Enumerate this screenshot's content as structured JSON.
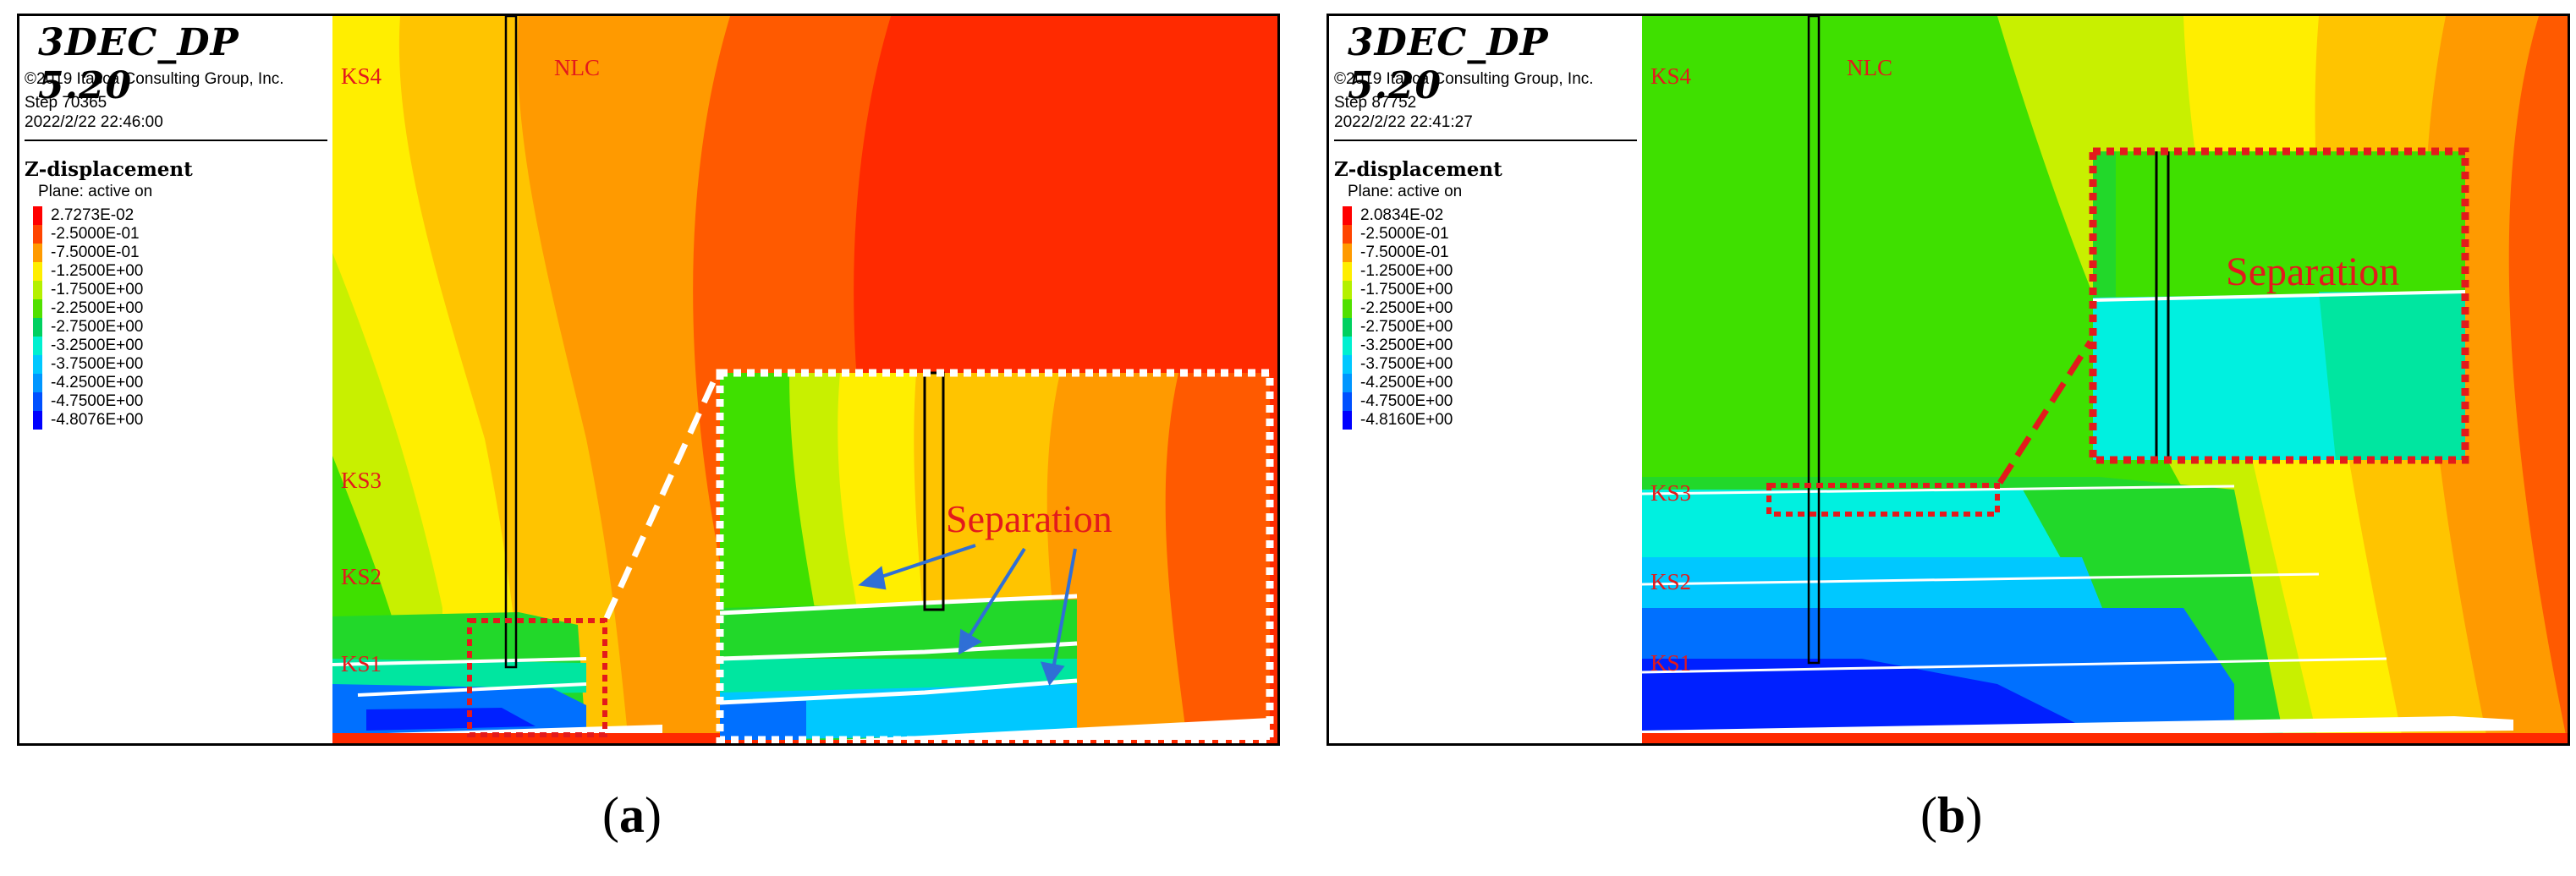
{
  "panels": [
    {
      "id": "a",
      "software": "3DEC_DP 5.20",
      "copyright": "©2019 Itasca Consulting Group, Inc.",
      "step": "Step 70365",
      "timestamp": "2022/2/22 22:46:00",
      "contour_label": "Z-displacement",
      "plane": "Plane: active on",
      "legend": [
        {
          "color": "#ff0000",
          "value": "2.7273E-02"
        },
        {
          "color": "#ff4400",
          "value": "-2.5000E-01"
        },
        {
          "color": "#ff9a00",
          "value": "-7.5000E-01"
        },
        {
          "color": "#ffee00",
          "value": "-1.2500E+00"
        },
        {
          "color": "#b4f000",
          "value": "-1.7500E+00"
        },
        {
          "color": "#50e000",
          "value": "-2.2500E+00"
        },
        {
          "color": "#00d060",
          "value": "-2.7500E+00"
        },
        {
          "color": "#00f0d0",
          "value": "-3.2500E+00"
        },
        {
          "color": "#00c8ff",
          "value": "-3.7500E+00"
        },
        {
          "color": "#0096ff",
          "value": "-4.2500E+00"
        },
        {
          "color": "#0050ff",
          "value": "-4.7500E+00"
        },
        {
          "color": "#0000ff",
          "value": "-4.8076E+00"
        }
      ],
      "labels": {
        "ks4": "KS4",
        "nlc": "NLC",
        "ks3": "KS3",
        "ks2": "KS2",
        "ks1": "KS1"
      },
      "annotation": "Separation",
      "caption_letter": "a"
    },
    {
      "id": "b",
      "software": "3DEC_DP 5.20",
      "copyright": "©2019 Itasca Consulting Group, Inc.",
      "step": "Step 87752",
      "timestamp": "2022/2/22 22:41:27",
      "contour_label": "Z-displacement",
      "plane": "Plane: active on",
      "legend": [
        {
          "color": "#ff0000",
          "value": "2.0834E-02"
        },
        {
          "color": "#ff4400",
          "value": "-2.5000E-01"
        },
        {
          "color": "#ff9a00",
          "value": "-7.5000E-01"
        },
        {
          "color": "#ffee00",
          "value": "-1.2500E+00"
        },
        {
          "color": "#b4f000",
          "value": "-1.7500E+00"
        },
        {
          "color": "#50e000",
          "value": "-2.2500E+00"
        },
        {
          "color": "#00d060",
          "value": "-2.7500E+00"
        },
        {
          "color": "#00f0d0",
          "value": "-3.2500E+00"
        },
        {
          "color": "#00c8ff",
          "value": "-3.7500E+00"
        },
        {
          "color": "#0096ff",
          "value": "-4.2500E+00"
        },
        {
          "color": "#0050ff",
          "value": "-4.7500E+00"
        },
        {
          "color": "#0000ff",
          "value": "-4.8160E+00"
        }
      ],
      "labels": {
        "ks4": "KS4",
        "nlc": "NLC",
        "ks3": "KS3",
        "ks2": "KS2",
        "ks1": "KS1"
      },
      "annotation": "Separation",
      "caption_letter": "b"
    }
  ],
  "colors": {
    "red": "#ff2a00",
    "orange_red": "#ff5a00",
    "orange": "#ff9a00",
    "yellow_orange": "#ffc400",
    "yellow": "#ffee00",
    "yellow_green": "#c8f000",
    "green": "#3fe000",
    "green2": "#22d82a",
    "teal": "#00e6a0",
    "cyan": "#00f0e0",
    "light_blue": "#00c8ff",
    "blue": "#0070ff",
    "deep_blue": "#0020ff",
    "annotation_red": "#e31a1c",
    "arrow_blue": "#2f6fd6"
  }
}
